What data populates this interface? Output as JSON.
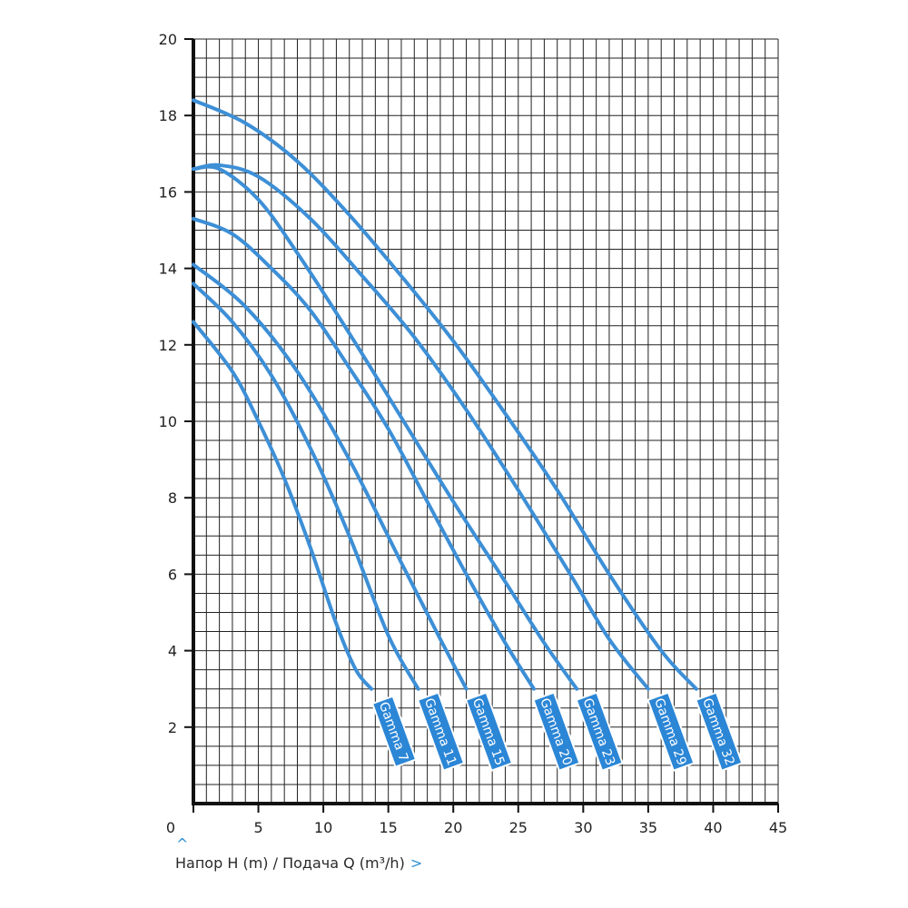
{
  "chart_data": {
    "type": "line",
    "xlim": [
      0,
      45
    ],
    "ylim": [
      0,
      20
    ],
    "x_ticks": [
      0,
      5,
      10,
      15,
      20,
      25,
      30,
      35,
      40,
      45
    ],
    "y_ticks": [
      2,
      4,
      6,
      8,
      10,
      12,
      14,
      16,
      18,
      20
    ],
    "grid": true,
    "caption": "Напор H (m) / Подача Q (m³/h)",
    "colors": {
      "curve": "#3d8fd6",
      "label_fill": "#2b86d6",
      "grid": "#222222",
      "axis": "#111111",
      "accent": "#2f8fd4"
    },
    "series": [
      {
        "name": "Gamma 7",
        "x": [
          0,
          3,
          5,
          7,
          9,
          11,
          12.5,
          13.7
        ],
        "y": [
          12.6,
          11.3,
          10.0,
          8.5,
          6.7,
          4.7,
          3.5,
          3.0
        ]
      },
      {
        "name": "Gamma 11",
        "x": [
          0,
          3,
          6,
          9,
          12,
          15,
          17.3
        ],
        "y": [
          13.6,
          12.6,
          11.2,
          9.3,
          7.0,
          4.4,
          3.0
        ]
      },
      {
        "name": "Gamma 15",
        "x": [
          0,
          4,
          8,
          12,
          16,
          19,
          21.0
        ],
        "y": [
          14.1,
          13.0,
          11.3,
          9.0,
          6.3,
          4.3,
          3.0
        ]
      },
      {
        "name": "Gamma 20",
        "x": [
          0,
          3,
          6,
          9,
          12,
          15,
          18,
          21,
          24,
          26.2
        ],
        "y": [
          15.3,
          14.9,
          14.0,
          12.9,
          11.4,
          9.8,
          7.9,
          6.0,
          4.2,
          3.0
        ]
      },
      {
        "name": "Gamma 23",
        "x": [
          0,
          2,
          5,
          8,
          12,
          16,
          20,
          24,
          27,
          29.5
        ],
        "y": [
          16.6,
          16.6,
          15.8,
          14.4,
          12.3,
          10.1,
          7.9,
          5.8,
          4.2,
          3.0
        ]
      },
      {
        "name": "Gamma 29",
        "x": [
          0,
          2,
          5,
          9,
          13,
          17,
          21,
          25,
          29,
          32,
          35.0
        ],
        "y": [
          16.6,
          16.7,
          16.4,
          15.3,
          13.8,
          12.2,
          10.3,
          8.2,
          6.0,
          4.3,
          3.0
        ]
      },
      {
        "name": "Gamma 32",
        "x": [
          0,
          4,
          8,
          12,
          16,
          20,
          24,
          28,
          32,
          36,
          38.7
        ],
        "y": [
          18.4,
          17.8,
          16.8,
          15.4,
          13.8,
          12.1,
          10.2,
          8.2,
          6.0,
          4.0,
          3.0
        ]
      }
    ]
  }
}
